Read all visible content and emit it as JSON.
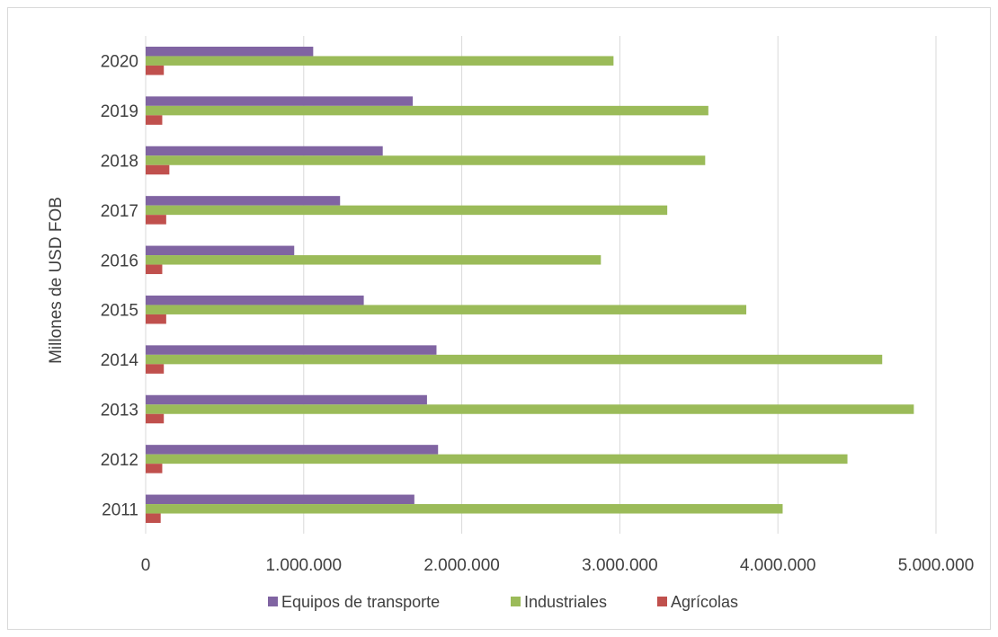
{
  "chart_data": {
    "type": "bar",
    "orientation": "horizontal",
    "categories": [
      "2011",
      "2012",
      "2013",
      "2014",
      "2015",
      "2016",
      "2017",
      "2018",
      "2019",
      "2020"
    ],
    "series": [
      {
        "name": "Equipos de transporte",
        "color": "#8064a2",
        "values": [
          1700000,
          1850000,
          1780000,
          1840000,
          1380000,
          940000,
          1230000,
          1500000,
          1690000,
          1060000
        ]
      },
      {
        "name": "Industriales",
        "color": "#9bbb59",
        "values": [
          4030000,
          4440000,
          4860000,
          4660000,
          3800000,
          2880000,
          3300000,
          3540000,
          3560000,
          2960000
        ]
      },
      {
        "name": "Agrícolas",
        "color": "#c0504d",
        "values": [
          95000,
          105000,
          115000,
          115000,
          130000,
          105000,
          130000,
          150000,
          105000,
          115000
        ]
      }
    ],
    "xlim": [
      0,
      5000000
    ],
    "xticks": [
      0,
      1000000,
      2000000,
      3000000,
      4000000,
      5000000
    ],
    "xtick_labels": [
      "0",
      "1.000.000",
      "2.000.000",
      "3.000.000",
      "4.000.000",
      "5.000.000"
    ],
    "ylabel": "Millones de USD FOB",
    "xlabel": "",
    "grid": "vertical",
    "legend_position": "bottom"
  }
}
